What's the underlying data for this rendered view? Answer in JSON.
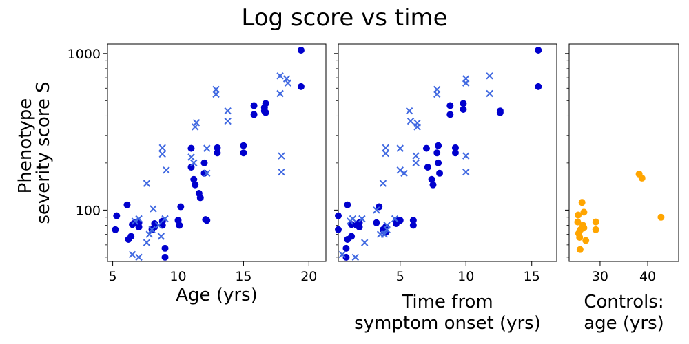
{
  "figure": {
    "title": "Log score vs time",
    "ylabel_lines": [
      "Phenotype",
      "severity score S"
    ]
  },
  "colors": {
    "circle": "#0000cd",
    "cross": "#4169e1",
    "control": "#ffa500"
  },
  "chart_data": [
    {
      "type": "scatter",
      "xlabel_lines": [
        "Age (yrs)"
      ],
      "xlim": [
        4.6,
        21.3
      ],
      "ylim": [
        47,
        1150
      ],
      "yscale": "log",
      "xticks": [
        5,
        10,
        15,
        20
      ],
      "yticks": [
        100,
        1000
      ],
      "ytick_labels": [
        "100",
        "1000"
      ],
      "series": [
        {
          "marker": "circle",
          "points": [
            [
              5.2,
              75
            ],
            [
              5.3,
              92
            ],
            [
              6.1,
              108
            ],
            [
              6.2,
              65
            ],
            [
              6.4,
              68
            ],
            [
              6.5,
              81
            ],
            [
              6.7,
              83
            ],
            [
              7.0,
              78
            ],
            [
              7.0,
              83
            ],
            [
              8.0,
              75
            ],
            [
              8.2,
              78
            ],
            [
              8.2,
              82
            ],
            [
              8.8,
              80
            ],
            [
              8.8,
              85
            ],
            [
              9.0,
              50
            ],
            [
              9.0,
              57
            ],
            [
              10.0,
              86
            ],
            [
              10.1,
              80
            ],
            [
              10.2,
              105
            ],
            [
              11.0,
              248
            ],
            [
              11.0,
              188
            ],
            [
              11.2,
              157
            ],
            [
              11.3,
              145
            ],
            [
              11.6,
              128
            ],
            [
              11.7,
              120
            ],
            [
              12.0,
              172
            ],
            [
              12.0,
              200
            ],
            [
              12.1,
              87
            ],
            [
              12.2,
              86
            ],
            [
              13.0,
              250
            ],
            [
              13.0,
              232
            ],
            [
              15.0,
              232
            ],
            [
              15.0,
              258
            ],
            [
              15.8,
              408
            ],
            [
              15.8,
              465
            ],
            [
              16.6,
              430
            ],
            [
              16.6,
              452
            ],
            [
              16.7,
              420
            ],
            [
              16.7,
              480
            ],
            [
              19.4,
              1050
            ],
            [
              19.4,
              615
            ]
          ]
        },
        {
          "marker": "cross",
          "points": [
            [
              6.5,
              52
            ],
            [
              6.7,
              85
            ],
            [
              7.0,
              50
            ],
            [
              7.0,
              88
            ],
            [
              7.6,
              62
            ],
            [
              7.6,
              148
            ],
            [
              7.8,
              70
            ],
            [
              8.0,
              75
            ],
            [
              8.1,
              102
            ],
            [
              8.5,
              80
            ],
            [
              8.7,
              68
            ],
            [
              8.8,
              250
            ],
            [
              8.8,
              228
            ],
            [
              9.0,
              88
            ],
            [
              9.1,
              180
            ],
            [
              11.0,
              218
            ],
            [
              11.2,
              200
            ],
            [
              11.3,
              340
            ],
            [
              11.4,
              362
            ],
            [
              12.2,
              172
            ],
            [
              12.2,
              248
            ],
            [
              12.9,
              590
            ],
            [
              12.9,
              550
            ],
            [
              13.8,
              430
            ],
            [
              13.8,
              370
            ],
            [
              17.8,
              720
            ],
            [
              17.8,
              555
            ],
            [
              17.9,
              222
            ],
            [
              17.9,
              175
            ],
            [
              18.3,
              690
            ],
            [
              18.4,
              648
            ]
          ]
        }
      ]
    },
    {
      "type": "scatter",
      "xlabel_lines": [
        "Time from",
        "symptom onset (yrs)"
      ],
      "xlim": [
        0.3,
        16.9
      ],
      "ylim": [
        47,
        1150
      ],
      "yscale": "log",
      "xticks": [
        5,
        10,
        15
      ],
      "yticks": [
        100,
        1000
      ],
      "series": [
        {
          "marker": "circle",
          "points": [
            [
              0.3,
              92
            ],
            [
              0.3,
              75
            ],
            [
              0.9,
              50
            ],
            [
              0.9,
              57
            ],
            [
              1.0,
              65
            ],
            [
              1.0,
              108
            ],
            [
              1.3,
              68
            ],
            [
              1.3,
              81
            ],
            [
              1.7,
              80
            ],
            [
              1.9,
              78
            ],
            [
              1.9,
              83
            ],
            [
              3.2,
              83
            ],
            [
              3.4,
              105
            ],
            [
              3.7,
              75
            ],
            [
              3.9,
              72
            ],
            [
              3.9,
              78
            ],
            [
              4.7,
              82
            ],
            [
              4.7,
              86
            ],
            [
              5.0,
              86
            ],
            [
              6.0,
              86
            ],
            [
              6.0,
              80
            ],
            [
              7.0,
              248
            ],
            [
              7.1,
              188
            ],
            [
              7.4,
              157
            ],
            [
              7.5,
              145
            ],
            [
              7.8,
              232
            ],
            [
              7.9,
              258
            ],
            [
              7.9,
              200
            ],
            [
              8.0,
              172
            ],
            [
              8.8,
              465
            ],
            [
              8.8,
              408
            ],
            [
              9.2,
              250
            ],
            [
              9.2,
              232
            ],
            [
              9.8,
              480
            ],
            [
              9.8,
              440
            ],
            [
              12.6,
              430
            ],
            [
              12.6,
              420
            ],
            [
              15.5,
              1050
            ],
            [
              15.5,
              615
            ]
          ]
        },
        {
          "marker": "cross",
          "points": [
            [
              0.6,
              52
            ],
            [
              1.2,
              85
            ],
            [
              1.4,
              88
            ],
            [
              1.6,
              50
            ],
            [
              2.1,
              88
            ],
            [
              2.3,
              62
            ],
            [
              3.2,
              100
            ],
            [
              3.5,
              70
            ],
            [
              3.7,
              148
            ],
            [
              3.8,
              70
            ],
            [
              3.9,
              250
            ],
            [
              3.9,
              230
            ],
            [
              4.0,
              80
            ],
            [
              4.0,
              75
            ],
            [
              4.6,
              88
            ],
            [
              5.0,
              248
            ],
            [
              5.0,
              180
            ],
            [
              5.3,
              172
            ],
            [
              5.7,
              430
            ],
            [
              5.8,
              370
            ],
            [
              6.2,
              200
            ],
            [
              6.2,
              222
            ],
            [
              6.3,
              340
            ],
            [
              6.3,
              360
            ],
            [
              7.8,
              590
            ],
            [
              7.8,
              550
            ],
            [
              10.0,
              690
            ],
            [
              10.0,
              648
            ],
            [
              10.0,
              222
            ],
            [
              10.0,
              175
            ],
            [
              11.8,
              720
            ],
            [
              11.8,
              555
            ]
          ]
        }
      ]
    },
    {
      "type": "scatter",
      "xlabel_lines": [
        "Controls:",
        "age (yrs)"
      ],
      "xlim": [
        23.5,
        46.5
      ],
      "ylim": [
        47,
        1150
      ],
      "yscale": "log",
      "xticks": [
        30,
        40
      ],
      "yticks": [
        100,
        1000
      ],
      "series": [
        {
          "marker": "circle",
          "points": [
            [
              25.3,
              84
            ],
            [
              25.4,
              93
            ],
            [
              25.5,
              71
            ],
            [
              25.7,
              67
            ],
            [
              25.9,
              75
            ],
            [
              25.8,
              56
            ],
            [
              26.2,
              112
            ],
            [
              26.4,
              80
            ],
            [
              26.6,
              97
            ],
            [
              26.6,
              77
            ],
            [
              27.0,
              64
            ],
            [
              29.1,
              84
            ],
            [
              29.1,
              75
            ],
            [
              38.2,
              170
            ],
            [
              38.8,
              160
            ],
            [
              42.8,
              90
            ]
          ]
        }
      ]
    }
  ]
}
